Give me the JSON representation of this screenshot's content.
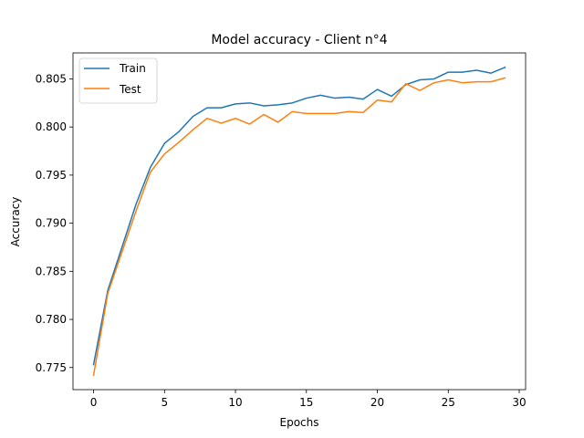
{
  "chart_data": {
    "type": "line",
    "title": "Model accuracy - Client n°4",
    "xlabel": "Epochs",
    "ylabel": "Accuracy",
    "x": [
      0,
      1,
      2,
      3,
      4,
      5,
      6,
      7,
      8,
      9,
      10,
      11,
      12,
      13,
      14,
      15,
      16,
      17,
      18,
      19,
      20,
      21,
      22,
      23,
      24,
      25,
      26,
      27,
      28,
      29
    ],
    "xlim": [
      -1.45,
      30.45
    ],
    "ylim": [
      0.7727,
      0.8077
    ],
    "xticks": [
      0,
      5,
      10,
      15,
      20,
      25,
      30
    ],
    "xtick_labels": [
      "0",
      "5",
      "10",
      "15",
      "20",
      "25",
      "30"
    ],
    "yticks": [
      0.775,
      0.78,
      0.785,
      0.79,
      0.795,
      0.8,
      0.805
    ],
    "ytick_labels": [
      "0.775",
      "0.780",
      "0.785",
      "0.790",
      "0.795",
      "0.800",
      "0.805"
    ],
    "grid": false,
    "legend_position": "top-left",
    "series": [
      {
        "name": "Train",
        "color": "#1f77b4",
        "values": [
          0.7753,
          0.783,
          0.7875,
          0.792,
          0.7958,
          0.7983,
          0.7995,
          0.8011,
          0.802,
          0.802,
          0.8024,
          0.8025,
          0.8022,
          0.8023,
          0.8025,
          0.803,
          0.8033,
          0.803,
          0.8031,
          0.8029,
          0.8039,
          0.8032,
          0.8044,
          0.8049,
          0.805,
          0.8057,
          0.8057,
          0.8059,
          0.8056,
          0.8062
        ]
      },
      {
        "name": "Test",
        "color": "#ff7f0e",
        "values": [
          0.7742,
          0.7827,
          0.787,
          0.7913,
          0.7953,
          0.7972,
          0.7984,
          0.7997,
          0.8009,
          0.8004,
          0.8009,
          0.8003,
          0.8013,
          0.8005,
          0.8016,
          0.8014,
          0.8014,
          0.8014,
          0.8016,
          0.8015,
          0.8028,
          0.8026,
          0.8045,
          0.8038,
          0.8046,
          0.8049,
          0.8046,
          0.8047,
          0.8047,
          0.8051
        ]
      }
    ]
  }
}
